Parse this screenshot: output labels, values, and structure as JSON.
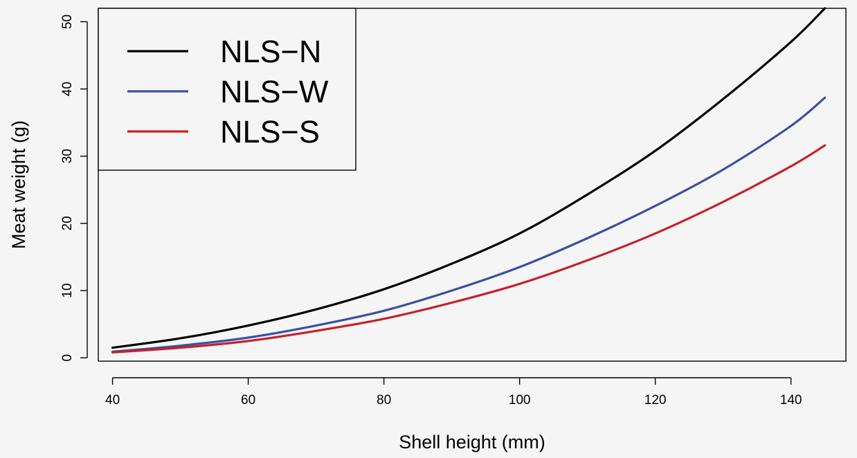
{
  "chart_data": {
    "type": "line",
    "title": "",
    "xlabel": "Shell height (mm)",
    "ylabel": "Meat weight (g)",
    "xlim": [
      37.9,
      148.1
    ],
    "ylim": [
      -0.5,
      52.0
    ],
    "x_ticks": [
      40,
      60,
      80,
      100,
      120,
      140
    ],
    "y_ticks": [
      0,
      10,
      20,
      30,
      40,
      50
    ],
    "grid": false,
    "legend_position": "top-left",
    "series": [
      {
        "name": "NLS−N",
        "color": "#000000",
        "x": [
          40,
          50,
          60,
          70,
          80,
          90,
          100,
          110,
          120,
          130,
          140,
          145
        ],
        "y": [
          1.5,
          2.9,
          4.8,
          7.2,
          10.2,
          14.0,
          18.5,
          24.3,
          30.8,
          38.5,
          47.0,
          52.0
        ]
      },
      {
        "name": "NLS−W",
        "color": "#3a50a0",
        "x": [
          40,
          50,
          60,
          70,
          80,
          90,
          100,
          110,
          120,
          130,
          140,
          145
        ],
        "y": [
          0.9,
          1.8,
          3.0,
          4.8,
          7.0,
          10.0,
          13.5,
          17.8,
          22.6,
          28.0,
          34.5,
          38.7
        ]
      },
      {
        "name": "NLS−S",
        "color": "#c8202a",
        "x": [
          40,
          50,
          60,
          70,
          80,
          90,
          100,
          110,
          120,
          130,
          140,
          145
        ],
        "y": [
          0.8,
          1.5,
          2.5,
          4.0,
          5.8,
          8.2,
          11.0,
          14.5,
          18.5,
          23.2,
          28.5,
          31.6
        ]
      }
    ]
  }
}
